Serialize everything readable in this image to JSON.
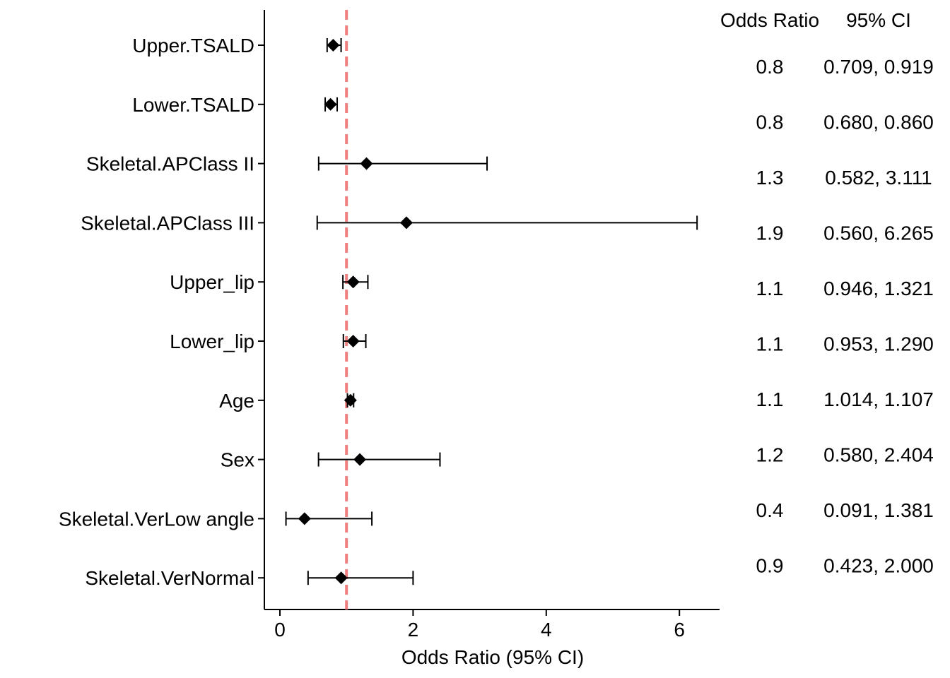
{
  "chart_data": {
    "type": "forest",
    "xlabel": "Odds Ratio (95% CI)",
    "xlim": [
      -0.2,
      6.6
    ],
    "x_ticks": [
      0,
      2,
      4,
      6
    ],
    "reference_line": {
      "x": 1,
      "style": "dashed",
      "color": "#F08080"
    },
    "marker": "diamond",
    "table_headers": {
      "or": "Odds Ratio",
      "ci": "95% CI"
    },
    "rows": [
      {
        "label": "Upper.TSALD",
        "or": 0.8,
        "lower": 0.709,
        "upper": 0.919,
        "or_text": "0.8",
        "ci_text": "0.709, 0.919"
      },
      {
        "label": "Lower.TSALD",
        "or": 0.76,
        "lower": 0.68,
        "upper": 0.86,
        "or_text": "0.8",
        "ci_text": "0.680, 0.860"
      },
      {
        "label": "Skeletal.APClass II",
        "or": 1.3,
        "lower": 0.582,
        "upper": 3.111,
        "or_text": "1.3",
        "ci_text": "0.582, 3.111"
      },
      {
        "label": "Skeletal.APClass III",
        "or": 1.9,
        "lower": 0.56,
        "upper": 6.265,
        "or_text": "1.9",
        "ci_text": "0.560, 6.265"
      },
      {
        "label": "Upper_lip",
        "or": 1.1,
        "lower": 0.946,
        "upper": 1.321,
        "or_text": "1.1",
        "ci_text": "0.946, 1.321"
      },
      {
        "label": "Lower_lip",
        "or": 1.1,
        "lower": 0.953,
        "upper": 1.29,
        "or_text": "1.1",
        "ci_text": "0.953, 1.290"
      },
      {
        "label": "Age",
        "or": 1.06,
        "lower": 1.014,
        "upper": 1.107,
        "or_text": "1.1",
        "ci_text": "1.014, 1.107"
      },
      {
        "label": "Sex",
        "or": 1.2,
        "lower": 0.58,
        "upper": 2.404,
        "or_text": "1.2",
        "ci_text": "0.580, 2.404"
      },
      {
        "label": "Skeletal.VerLow angle",
        "or": 0.37,
        "lower": 0.091,
        "upper": 1.381,
        "or_text": "0.4",
        "ci_text": "0.091, 1.381"
      },
      {
        "label": "Skeletal.VerNormal",
        "or": 0.92,
        "lower": 0.423,
        "upper": 2.0,
        "or_text": "0.9",
        "ci_text": "0.423, 2.000"
      }
    ]
  }
}
